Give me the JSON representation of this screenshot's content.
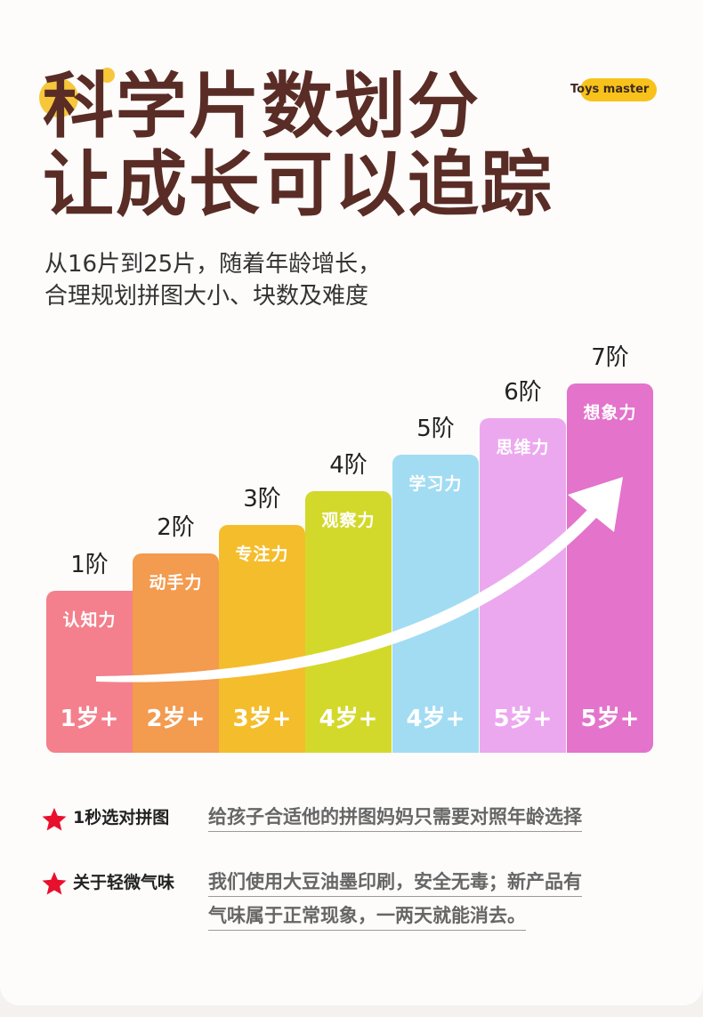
{
  "headline": {
    "line1": "科学片数划分",
    "line2": "让成长可以追踪"
  },
  "brand": "Toys master",
  "subtitle": {
    "line1": "从16片到25片，随着年龄增长，",
    "line2": "合理规划拼图大小、块数及难度"
  },
  "stages": [
    {
      "level": "1阶",
      "skill": "认知力",
      "age": "1岁+",
      "color": "#f3808c"
    },
    {
      "level": "2阶",
      "skill": "动手力",
      "age": "2岁+",
      "color": "#f39b4f"
    },
    {
      "level": "3阶",
      "skill": "专注力",
      "age": "3岁+",
      "color": "#f4bd2b"
    },
    {
      "level": "4阶",
      "skill": "观察力",
      "age": "4岁+",
      "color": "#d3d92a"
    },
    {
      "level": "5阶",
      "skill": "学习力",
      "age": "4岁+",
      "color": "#a2dcf3"
    },
    {
      "level": "6阶",
      "skill": "思维力",
      "age": "5岁+",
      "color": "#eca8ef"
    },
    {
      "level": "7阶",
      "skill": "想象力",
      "age": "5岁+",
      "color": "#e373cb"
    }
  ],
  "notes": [
    {
      "title": "1秒选对拼图",
      "lines": [
        "给孩子合适他的拼图妈妈只需要对照年龄选择"
      ]
    },
    {
      "title": "关于轻微气味",
      "lines": [
        "我们使用大豆油墨印刷，安全无毒；新产品有",
        "气味属于正常现象，一两天就能消去。"
      ]
    }
  ],
  "colors": {
    "headline": "#5a2c26",
    "accent_yellow": "#f7c73b",
    "star": "#e8112d"
  }
}
